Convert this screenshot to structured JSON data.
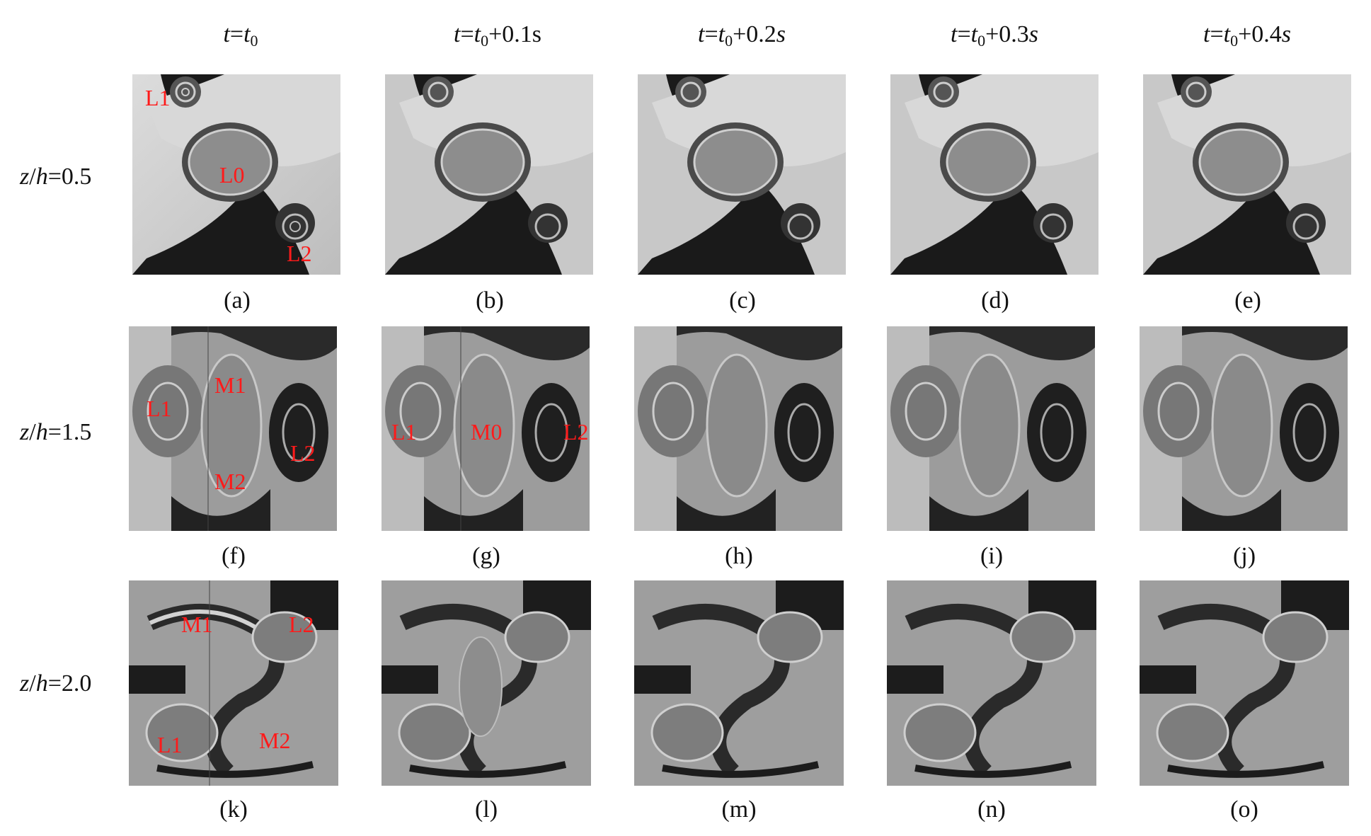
{
  "columns": [
    {
      "t": "t",
      "eq": "=",
      "t0": "t",
      "sub": "0",
      "plus": "",
      "unit": ""
    },
    {
      "t": "t",
      "eq": "=",
      "t0": "t",
      "sub": "0",
      "plus": "+0.1",
      "unit": "s"
    },
    {
      "t": "t",
      "eq": "=",
      "t0": "t",
      "sub": "0",
      "plus": "+0.2",
      "unit": "s"
    },
    {
      "t": "t",
      "eq": "=",
      "t0": "t",
      "sub": "0",
      "plus": "+0.3",
      "unit": "s"
    },
    {
      "t": "t",
      "eq": "=",
      "t0": "t",
      "sub": "0",
      "plus": "+0.4",
      "unit": "s"
    }
  ],
  "rows": [
    {
      "z": "z",
      "slash": "/",
      "h": "h",
      "value": "=0.5"
    },
    {
      "z": "z",
      "slash": "/",
      "h": "h",
      "value": "=1.5"
    },
    {
      "z": "z",
      "slash": "/",
      "h": "h",
      "value": "=2.0"
    }
  ],
  "panel_labels": [
    "(a)",
    "(b)",
    "(c)",
    "(d)",
    "(e)",
    "(f)",
    "(g)",
    "(h)",
    "(i)",
    "(j)",
    "(k)",
    "(l)",
    "(m)",
    "(n)",
    "(o)"
  ],
  "annotations": {
    "a": {
      "l1": "L1",
      "l0": "L0",
      "l2": "L2"
    },
    "f": {
      "l1": "L1",
      "m1": "M1",
      "m2": "M2",
      "l2": "L2"
    },
    "g": {
      "l1": "L1",
      "m0": "M0",
      "l2": "L2"
    },
    "k": {
      "m1": "M1",
      "l2": "L2",
      "l1": "L1",
      "m2": "M2"
    }
  },
  "colors": {
    "annotation": "#ff1a1a"
  }
}
